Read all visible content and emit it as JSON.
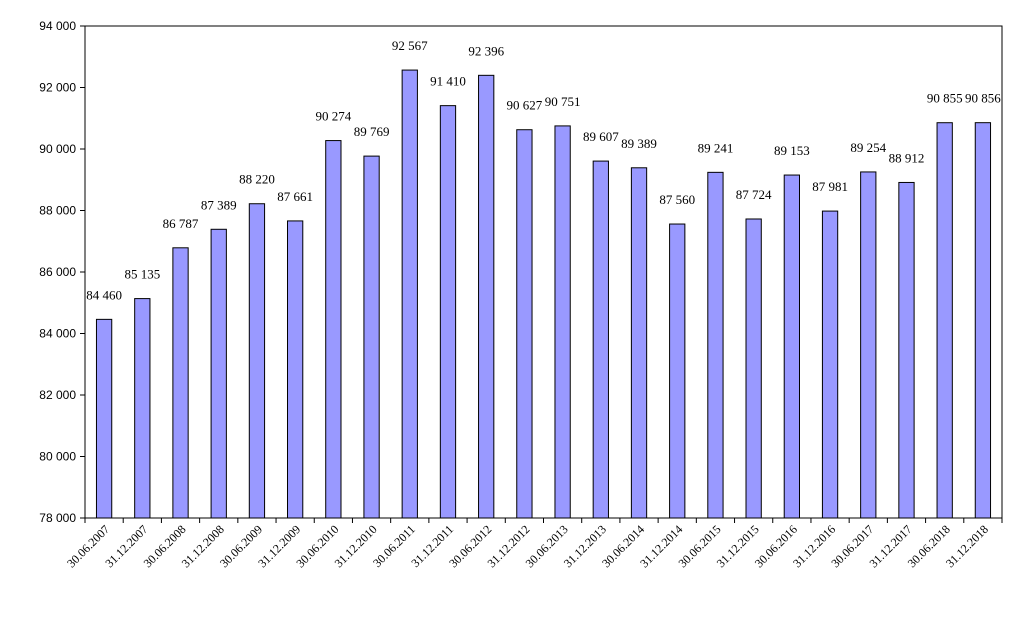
{
  "chart_data": {
    "type": "bar",
    "title": "",
    "xlabel": "",
    "ylabel": "",
    "categories": [
      "30.06.2007",
      "31.12.2007",
      "30.06.2008",
      "31.12.2008",
      "30.06.2009",
      "31.12.2009",
      "30.06.2010",
      "31.12.2010",
      "30.06.2011",
      "31.12.2011",
      "30.06.2012",
      "31.12.2012",
      "30.06.2013",
      "31.12.2013",
      "30.06.2014",
      "31.12.2014",
      "30.06.2015",
      "31.12.2015",
      "30.06.2016",
      "31.12.2016",
      "30.06.2017",
      "31.12.2017",
      "30.06.2018",
      "31.12.2018"
    ],
    "values": [
      84460,
      85135,
      86787,
      87389,
      88220,
      87661,
      90274,
      89769,
      92567,
      91410,
      92396,
      90627,
      90751,
      89607,
      89389,
      87560,
      89241,
      87724,
      89153,
      87981,
      89254,
      88912,
      90855,
      90856
    ],
    "value_labels": [
      "84 460",
      "85 135",
      "86 787",
      "87 389",
      "88 220",
      "87 661",
      "90 274",
      "89 769",
      "92 567",
      "91 410",
      "92 396",
      "90 627",
      "90 751",
      "89 607",
      "89 389",
      "87 560",
      "89 241",
      "87 724",
      "89 153",
      "87 981",
      "89 254",
      "88 912",
      "90 855",
      "90 856"
    ],
    "ylim": [
      78000,
      94000
    ],
    "yticks": [
      78000,
      80000,
      82000,
      84000,
      86000,
      88000,
      90000,
      92000,
      94000
    ],
    "ytick_labels": [
      "78 000",
      "80 000",
      "82 000",
      "84 000",
      "86 000",
      "88 000",
      "90 000",
      "92 000",
      "94 000"
    ],
    "grid": false,
    "legend": "none",
    "bar_color": "#9999ff",
    "bar_edge_color": "#000000"
  }
}
